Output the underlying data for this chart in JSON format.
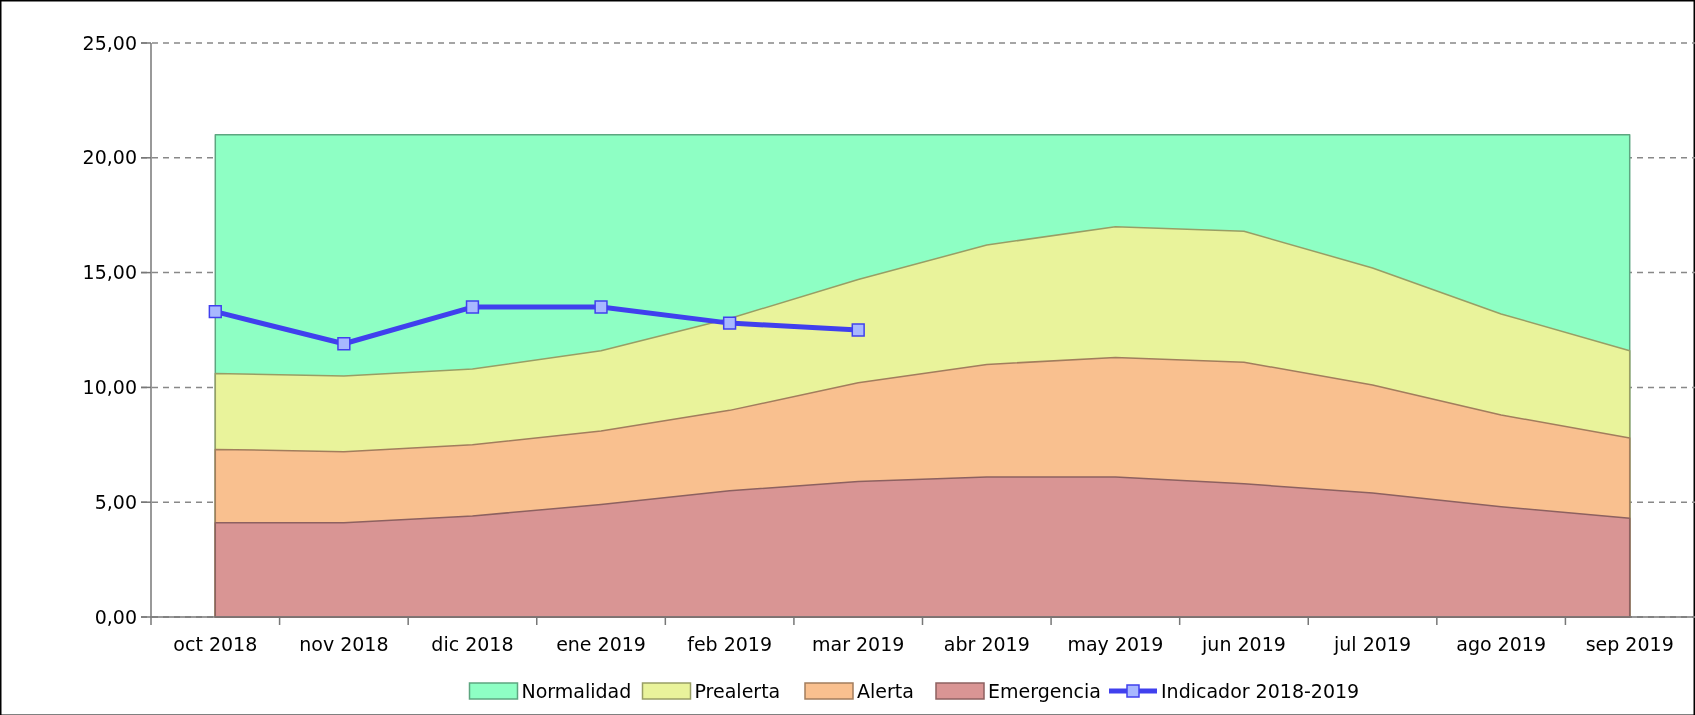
{
  "chart_data": {
    "type": "area",
    "categories": [
      "oct 2018",
      "nov 2018",
      "dic 2018",
      "ene 2019",
      "feb 2019",
      "mar 2019",
      "abr 2019",
      "may 2019",
      "jun 2019",
      "jul 2019",
      "ago 2019",
      "sep 2019"
    ],
    "series": [
      {
        "name": "Normalidad",
        "color": "#8effc4",
        "values": [
          21,
          21,
          21,
          21,
          21,
          21,
          21,
          21,
          21,
          21,
          21,
          21
        ]
      },
      {
        "name": "Prealerta",
        "color": "#e9f39b",
        "values": [
          10.6,
          10.5,
          10.8,
          11.6,
          13.0,
          14.7,
          16.2,
          17.0,
          16.8,
          15.2,
          13.2,
          11.6
        ]
      },
      {
        "name": "Alerta",
        "color": "#f9c08f",
        "values": [
          7.3,
          7.2,
          7.5,
          8.1,
          9.0,
          10.2,
          11.0,
          11.3,
          11.1,
          10.1,
          8.8,
          7.8
        ]
      },
      {
        "name": "Emergencia",
        "color": "#d99594",
        "values": [
          4.1,
          4.1,
          4.4,
          4.9,
          5.5,
          5.9,
          6.1,
          6.1,
          5.8,
          5.4,
          4.8,
          4.3
        ]
      },
      {
        "name": "Indicador 2018-2019",
        "type": "line",
        "color": "#4040ee",
        "marker": "square",
        "values": [
          13.3,
          11.9,
          13.5,
          13.5,
          12.8,
          12.5,
          null,
          null,
          null,
          null,
          null,
          null
        ]
      }
    ],
    "ylim": [
      0,
      25
    ],
    "yticks": [
      {
        "value": 0,
        "label": "0,00"
      },
      {
        "value": 5,
        "label": "5,00"
      },
      {
        "value": 10,
        "label": "10,00"
      },
      {
        "value": 15,
        "label": "15,00"
      },
      {
        "value": 20,
        "label": "20,00"
      },
      {
        "value": 25,
        "label": "25,00"
      }
    ],
    "grid": "y",
    "legend": "bottom"
  }
}
